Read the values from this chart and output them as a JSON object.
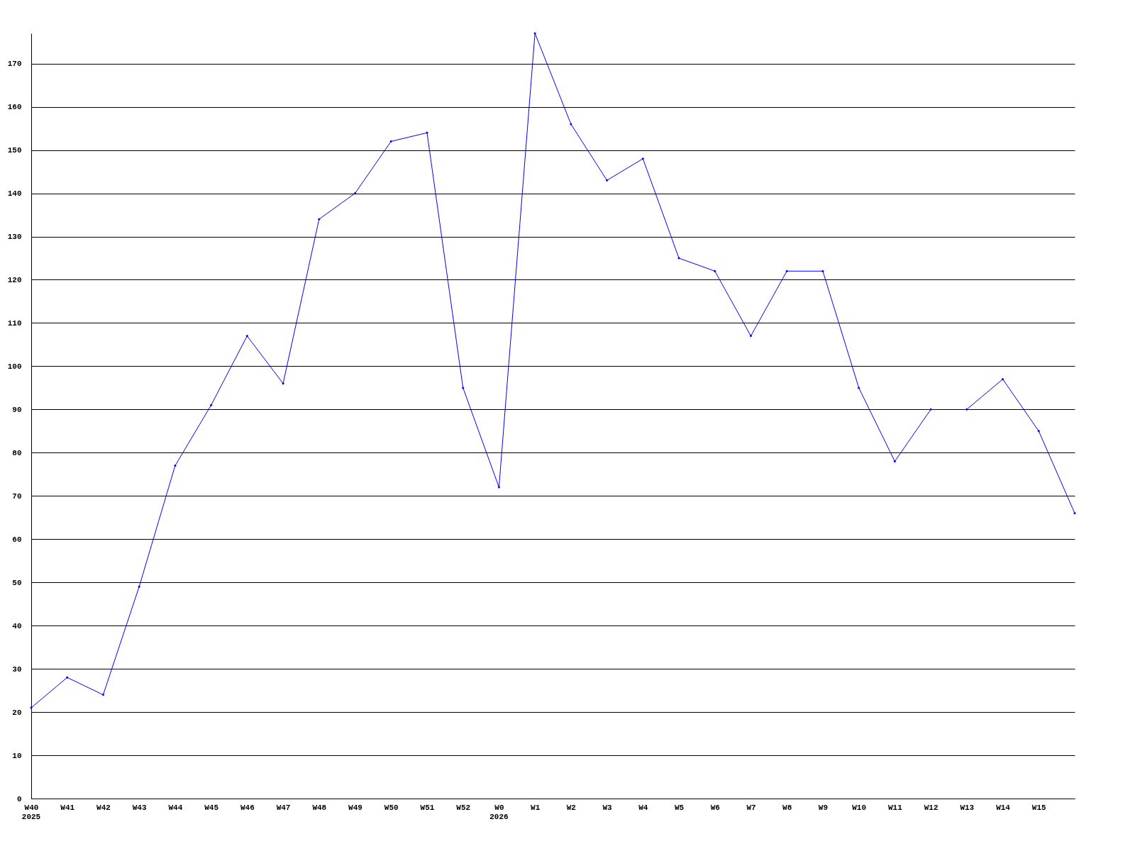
{
  "chart_data": {
    "type": "line",
    "categories": [
      "W40",
      "W41",
      "W42",
      "W43",
      "W44",
      "W45",
      "W46",
      "W47",
      "W48",
      "W49",
      "W50",
      "W51",
      "W52",
      "W0",
      "W1",
      "W2",
      "W3",
      "W4",
      "W5",
      "W6",
      "W7",
      "W8",
      "W9",
      "W10",
      "W11",
      "W12",
      "W13",
      "W14",
      "W15",
      null
    ],
    "series": [
      {
        "color": "#0000ff",
        "values": [
          21,
          28,
          24,
          49,
          77,
          91,
          107,
          96,
          134,
          140,
          152,
          154,
          95,
          72,
          177,
          156,
          143,
          148,
          125,
          122,
          107,
          122,
          122,
          95,
          78,
          90,
          null,
          null,
          null,
          null
        ]
      },
      {
        "color": "#0000ff",
        "values": [
          null,
          null,
          null,
          null,
          null,
          null,
          null,
          null,
          null,
          null,
          null,
          null,
          null,
          null,
          null,
          null,
          null,
          null,
          null,
          null,
          null,
          null,
          null,
          null,
          null,
          null,
          90,
          97,
          85,
          66
        ]
      }
    ],
    "ylim": [
      0,
      177
    ],
    "yticks": [
      0,
      10,
      20,
      30,
      40,
      50,
      60,
      70,
      80,
      90,
      100,
      110,
      120,
      130,
      140,
      150,
      160,
      170
    ],
    "grid": "y",
    "marker": "diamond",
    "line_style": "solid",
    "annotations": [
      "2025",
      "2026"
    ]
  }
}
